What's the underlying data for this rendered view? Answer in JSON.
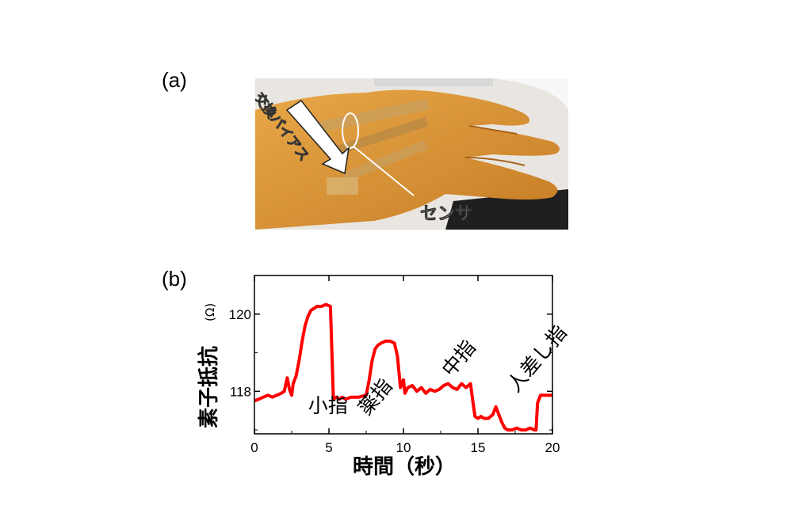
{
  "panel_a": {
    "label": "(a)",
    "annotations": {
      "bias": "交換バイアス",
      "sensor": "センサ"
    }
  },
  "panel_b": {
    "label": "(b)"
  },
  "colors": {
    "series": "#ff0000",
    "skin": "#d9952f",
    "skin_dark": "#b8711f",
    "backdrop": "#1f1f1f"
  },
  "chart_data": {
    "type": "line",
    "xlabel": "時間（秒）",
    "ylabel": "素子抵抗",
    "yunit": "(Ω)",
    "xlim": [
      0,
      20
    ],
    "ylim": [
      116.9,
      121.0
    ],
    "xticks": [
      0,
      5,
      10,
      15,
      20
    ],
    "yticks": [
      118,
      120
    ],
    "grid": false,
    "series": [
      {
        "x": [
          0,
          0.3,
          0.6,
          0.9,
          1.2,
          1.5,
          1.8,
          2.0,
          2.2,
          2.35,
          2.5,
          2.6,
          2.8,
          3.0,
          3.2,
          3.4,
          3.6,
          3.8,
          4.0,
          4.2,
          4.5,
          4.8,
          5.1,
          5.3,
          5.5,
          5.7,
          5.9,
          6.1,
          6.5,
          7.0,
          7.5,
          7.7,
          7.9,
          8.1,
          8.3,
          8.5,
          8.8,
          9.1,
          9.4,
          9.6,
          9.8,
          10.0,
          10.1,
          10.3,
          10.6,
          10.9,
          11.2,
          11.5,
          11.8,
          12.1,
          12.4,
          12.7,
          13.0,
          13.3,
          13.6,
          13.9,
          14.2,
          14.5,
          14.6,
          14.8,
          15.0,
          15.2,
          15.4,
          15.7,
          16.0,
          16.2,
          16.4,
          16.6,
          16.8,
          17.0,
          17.3,
          17.6,
          17.9,
          18.2,
          18.5,
          18.8,
          18.9,
          19.0,
          19.2,
          19.5,
          19.8,
          20.0
        ],
        "y": [
          117.75,
          117.8,
          117.85,
          117.9,
          117.85,
          117.9,
          117.95,
          118.0,
          118.35,
          118.05,
          117.9,
          118.2,
          118.4,
          118.8,
          119.3,
          119.7,
          119.95,
          120.1,
          120.15,
          120.2,
          120.2,
          120.25,
          120.2,
          117.8,
          117.85,
          117.8,
          117.85,
          117.8,
          117.85,
          117.85,
          117.9,
          118.3,
          118.8,
          119.1,
          119.2,
          119.25,
          119.3,
          119.3,
          119.25,
          118.9,
          118.1,
          118.3,
          117.95,
          118.1,
          118.15,
          118.0,
          118.1,
          117.95,
          118.05,
          118.0,
          118.05,
          118.15,
          118.2,
          118.1,
          118.05,
          118.2,
          118.1,
          118.2,
          117.9,
          117.35,
          117.3,
          117.35,
          117.3,
          117.3,
          117.4,
          117.6,
          117.4,
          117.2,
          117.05,
          117.0,
          117.0,
          117.05,
          117.0,
          117.0,
          117.05,
          117.0,
          117.0,
          117.7,
          117.9,
          117.9,
          117.9,
          117.9
        ]
      }
    ],
    "annotations": [
      {
        "text": "小指",
        "x": 3.6,
        "y": 117.45,
        "rotate": 0
      },
      {
        "text": "薬指",
        "x": 7.6,
        "y": 117.35,
        "rotate": -50
      },
      {
        "text": "中指",
        "x": 13.2,
        "y": 118.35,
        "rotate": -50
      },
      {
        "text": "人差し指",
        "x": 17.6,
        "y": 117.95,
        "rotate": -50
      }
    ]
  }
}
